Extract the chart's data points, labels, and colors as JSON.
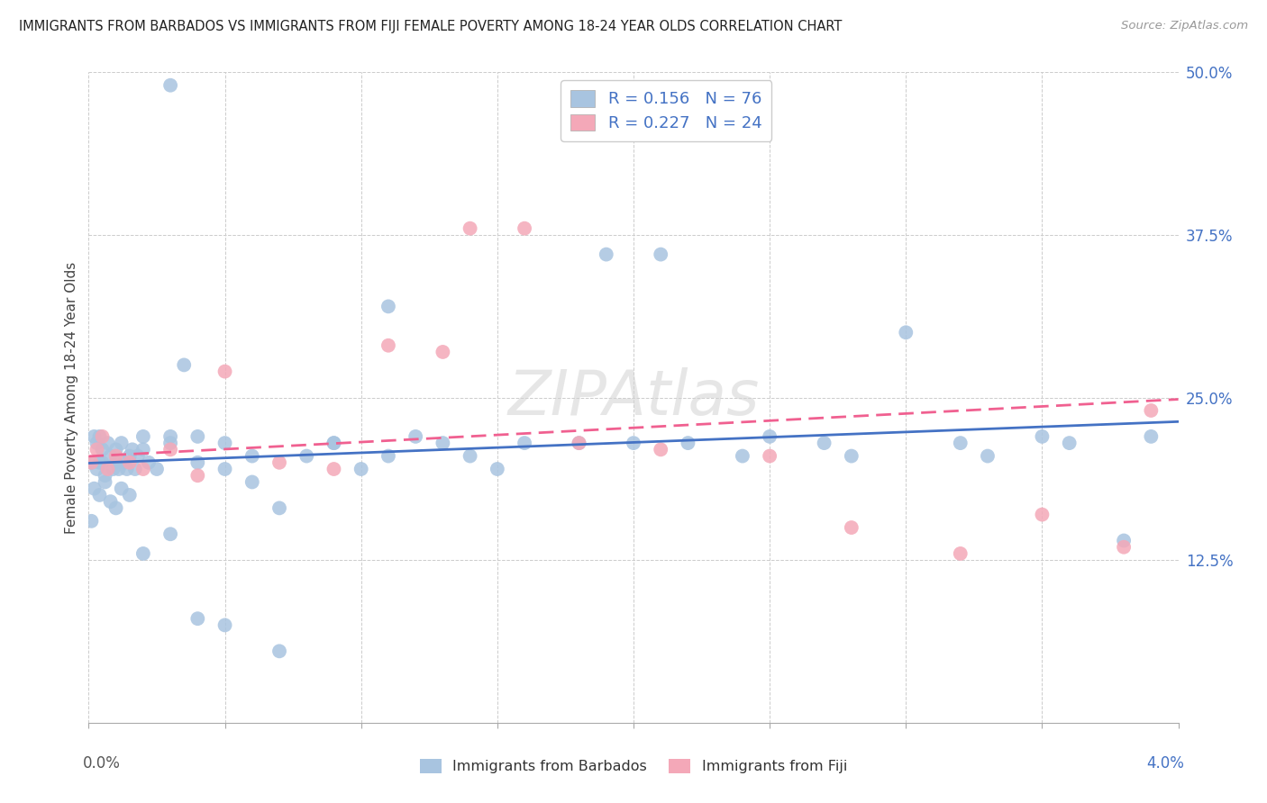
{
  "title": "IMMIGRANTS FROM BARBADOS VS IMMIGRANTS FROM FIJI FEMALE POVERTY AMONG 18-24 YEAR OLDS CORRELATION CHART",
  "source": "Source: ZipAtlas.com",
  "ylabel": "Female Poverty Among 18-24 Year Olds",
  "xmin": 0.0,
  "xmax": 0.04,
  "ymin": 0.0,
  "ymax": 0.5,
  "yticks": [
    0.0,
    0.125,
    0.25,
    0.375,
    0.5
  ],
  "ytick_labels": [
    "",
    "12.5%",
    "25.0%",
    "37.5%",
    "50.0%"
  ],
  "r_barbados": 0.156,
  "n_barbados": 76,
  "r_fiji": 0.227,
  "n_fiji": 24,
  "color_barbados": "#a8c4e0",
  "color_fiji": "#f4a8b8",
  "line_color_barbados": "#4472c4",
  "line_color_fiji": "#f06090",
  "legend_label_barbados": "Immigrants from Barbados",
  "legend_label_fiji": "Immigrants from Fiji",
  "barbados_x": [
    0.0001,
    0.0002,
    0.0003,
    0.0003,
    0.0004,
    0.0004,
    0.0005,
    0.0005,
    0.0006,
    0.0007,
    0.0008,
    0.0009,
    0.001,
    0.001,
    0.0011,
    0.0012,
    0.0013,
    0.0014,
    0.0015,
    0.0016,
    0.0017,
    0.0018,
    0.002,
    0.002,
    0.0022,
    0.0025,
    0.003,
    0.003,
    0.0035,
    0.004,
    0.004,
    0.005,
    0.005,
    0.006,
    0.006,
    0.007,
    0.008,
    0.009,
    0.01,
    0.011,
    0.012,
    0.013,
    0.014,
    0.015,
    0.016,
    0.018,
    0.019,
    0.02,
    0.021,
    0.022,
    0.024,
    0.025,
    0.027,
    0.028,
    0.03,
    0.032,
    0.033,
    0.035,
    0.036,
    0.038,
    0.039,
    0.0001,
    0.0002,
    0.0004,
    0.0006,
    0.0008,
    0.001,
    0.0012,
    0.0015,
    0.002,
    0.003,
    0.004,
    0.005,
    0.007,
    0.009,
    0.011,
    0.003
  ],
  "barbados_y": [
    0.2,
    0.22,
    0.215,
    0.195,
    0.2,
    0.22,
    0.21,
    0.2,
    0.19,
    0.215,
    0.205,
    0.195,
    0.21,
    0.2,
    0.195,
    0.215,
    0.2,
    0.195,
    0.205,
    0.21,
    0.195,
    0.205,
    0.22,
    0.21,
    0.2,
    0.195,
    0.22,
    0.215,
    0.275,
    0.2,
    0.22,
    0.195,
    0.215,
    0.185,
    0.205,
    0.165,
    0.205,
    0.215,
    0.195,
    0.205,
    0.22,
    0.215,
    0.205,
    0.195,
    0.215,
    0.215,
    0.36,
    0.215,
    0.36,
    0.215,
    0.205,
    0.22,
    0.215,
    0.205,
    0.3,
    0.215,
    0.205,
    0.22,
    0.215,
    0.14,
    0.22,
    0.155,
    0.18,
    0.175,
    0.185,
    0.17,
    0.165,
    0.18,
    0.175,
    0.13,
    0.145,
    0.08,
    0.075,
    0.055,
    0.215,
    0.32,
    0.49
  ],
  "fiji_x": [
    0.0001,
    0.0003,
    0.0005,
    0.0007,
    0.001,
    0.0015,
    0.002,
    0.003,
    0.004,
    0.005,
    0.007,
    0.009,
    0.011,
    0.013,
    0.014,
    0.016,
    0.018,
    0.021,
    0.025,
    0.028,
    0.032,
    0.035,
    0.038,
    0.039
  ],
  "fiji_y": [
    0.2,
    0.21,
    0.22,
    0.195,
    0.205,
    0.2,
    0.195,
    0.21,
    0.19,
    0.27,
    0.2,
    0.195,
    0.29,
    0.285,
    0.38,
    0.38,
    0.215,
    0.21,
    0.205,
    0.15,
    0.13,
    0.16,
    0.135,
    0.24
  ]
}
